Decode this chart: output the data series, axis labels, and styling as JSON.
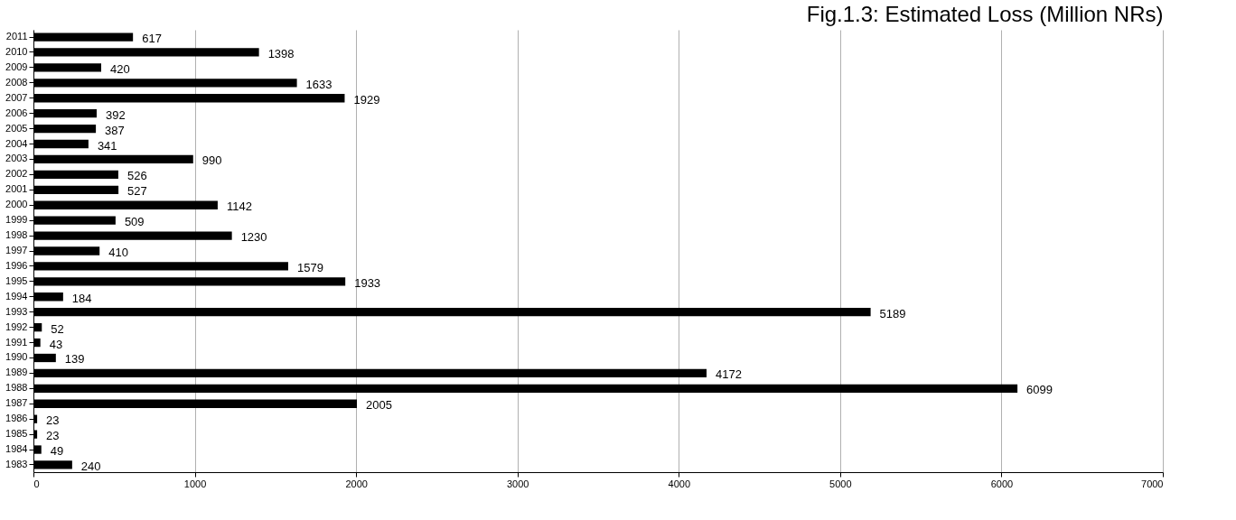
{
  "chart_data": {
    "type": "bar",
    "orientation": "horizontal",
    "title": "Fig.1.3: Estimated Loss (Million NRs)",
    "categories": [
      "2011",
      "2010",
      "2009",
      "2008",
      "2007",
      "2006",
      "2005",
      "2004",
      "2003",
      "2002",
      "2001",
      "2000",
      "1999",
      "1998",
      "1997",
      "1996",
      "1995",
      "1994",
      "1993",
      "1992",
      "1991",
      "1990",
      "1989",
      "1988",
      "1987",
      "1986",
      "1985",
      "1984",
      "1983"
    ],
    "values": [
      617,
      1398,
      420,
      1633,
      1929,
      392,
      387,
      341,
      990,
      526,
      527,
      1142,
      509,
      1230,
      410,
      1579,
      1933,
      184,
      5189,
      52,
      43,
      139,
      4172,
      6099,
      2005,
      23,
      23,
      49,
      240
    ],
    "color": "#000000",
    "xlim": [
      0,
      7000
    ],
    "xticks": [
      0,
      1000,
      2000,
      3000,
      4000,
      5000,
      6000,
      7000
    ],
    "grid": "x",
    "data_labels": true
  }
}
